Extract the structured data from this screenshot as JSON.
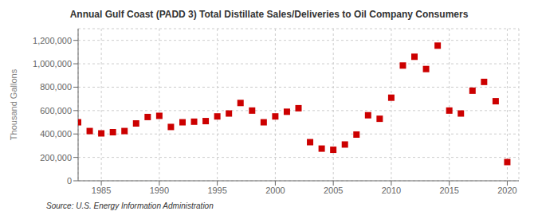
{
  "chart_data": {
    "type": "scatter",
    "title": "Annual Gulf Coast (PADD 3) Total Distillate Sales/Deliveries to Oil Company Consumers",
    "ylabel": "Thousand Gallons",
    "annotation": "Source: U.S. Energy Information Administration",
    "x": [
      1983,
      1984,
      1985,
      1986,
      1987,
      1988,
      1989,
      1990,
      1991,
      1992,
      1993,
      1994,
      1995,
      1996,
      1997,
      1998,
      1999,
      2000,
      2001,
      2002,
      2003,
      2004,
      2005,
      2006,
      2007,
      2008,
      2009,
      2010,
      2011,
      2012,
      2013,
      2014,
      2015,
      2016,
      2017,
      2018,
      2019,
      2020
    ],
    "values": [
      500000,
      425000,
      405000,
      415000,
      425000,
      490000,
      545000,
      555000,
      460000,
      500000,
      505000,
      510000,
      550000,
      575000,
      665000,
      600000,
      500000,
      550000,
      590000,
      620000,
      330000,
      275000,
      265000,
      310000,
      395000,
      560000,
      530000,
      710000,
      985000,
      1060000,
      955000,
      1155000,
      600000,
      575000,
      770000,
      845000,
      680000,
      160000
    ],
    "color": "#cc0000",
    "marker": "square",
    "xlim": [
      1983,
      2021
    ],
    "ylim": [
      0,
      1300000
    ],
    "xticks": [
      1985,
      1990,
      1995,
      2000,
      2005,
      2010,
      2015,
      2020
    ],
    "yticks": [
      0,
      {
        "value": 200000,
        "label": "200,000"
      },
      {
        "value": 400000,
        "label": "400,000"
      },
      {
        "value": 600000,
        "label": "600,000"
      },
      {
        "value": 800000,
        "label": "800,000"
      },
      {
        "value": 1000000,
        "label": "1,000,000"
      },
      {
        "value": 1200000,
        "label": "1,200,000"
      }
    ],
    "grid": true
  }
}
